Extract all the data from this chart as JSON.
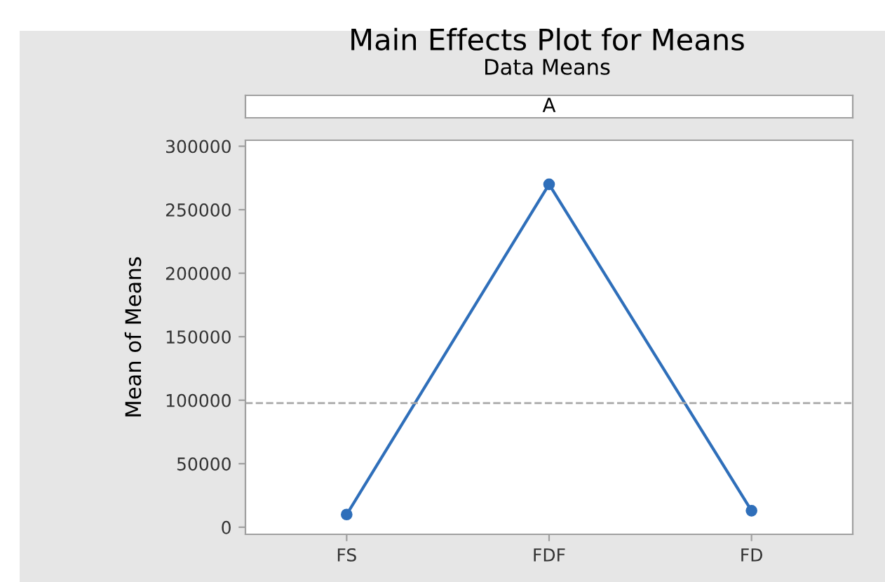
{
  "chart_data": {
    "type": "line",
    "title": "Main Effects Plot for Means",
    "subtitle": "Data Means",
    "ylabel": "Mean of Means",
    "annotations": [
      "A"
    ],
    "categories": [
      "FS",
      "FDF",
      "FD"
    ],
    "series": [
      {
        "color": "#2f6fba",
        "values": [
          10000,
          270000,
          13000
        ]
      }
    ],
    "ylim": [
      -5600,
      304700
    ],
    "yticks": [
      0,
      50000,
      100000,
      150000,
      200000,
      250000,
      300000
    ],
    "ref_lines": [
      {
        "axis": "y",
        "value": 97700,
        "color": "#a8a8a8",
        "line_style": "dashed"
      }
    ],
    "grid": false,
    "legend": false,
    "marker": "circle",
    "line_style": "solid"
  }
}
